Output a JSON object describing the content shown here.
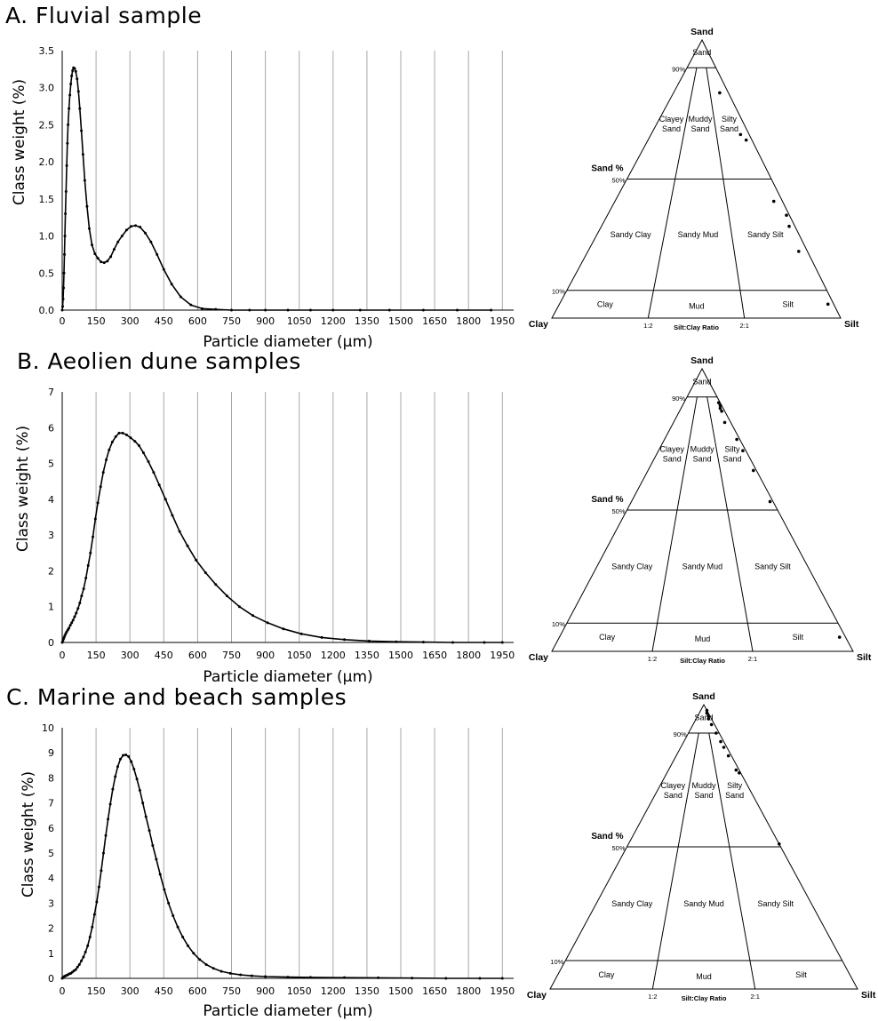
{
  "panels": [
    {
      "title": "A. Fluvial sample"
    },
    {
      "title": "B. Aeolien dune samples"
    },
    {
      "title": "C. Marine and beach samples"
    }
  ],
  "ternary_labels": {
    "top": "Sand",
    "left": "Clay",
    "right": "Silt",
    "sand_pct": "Sand %",
    "p90": "90%",
    "p50": "50%",
    "p10": "10%",
    "r12": "1:2",
    "r21": "2:1",
    "ratio": "Silt:Clay Ratio",
    "sand_field": "Sand",
    "clayey_sand": [
      "Clayey",
      "Sand"
    ],
    "muddy_sand": [
      "Muddy",
      "Sand"
    ],
    "silty_sand": [
      "Silty",
      "Sand"
    ],
    "sandy_clay": "Sandy Clay",
    "sandy_mud": "Sandy Mud",
    "sandy_silt": "Sandy Silt",
    "clay_field": "Clay",
    "mud_field": "Mud",
    "silt_field": "Silt"
  },
  "chart_data": [
    {
      "type": "line",
      "id": "A",
      "xlabel": "Particle diameter (μm)",
      "ylabel": "Class weight (%)",
      "xlim": [
        0,
        2000
      ],
      "ylim": [
        0,
        3.5
      ],
      "xticks": [
        0,
        150,
        300,
        450,
        600,
        750,
        900,
        1050,
        1200,
        1350,
        1500,
        1650,
        1800,
        1950
      ],
      "yticks": [
        "0.0",
        "0.5",
        "1.0",
        "1.5",
        "2.0",
        "2.5",
        "3.0",
        "3.5"
      ],
      "x": [
        0,
        2,
        4,
        6,
        8,
        10,
        12,
        14,
        17,
        20,
        23,
        26,
        30,
        34,
        38,
        42,
        46,
        50,
        55,
        60,
        66,
        72,
        78,
        85,
        92,
        100,
        110,
        120,
        132,
        145,
        158,
        172,
        186,
        200,
        215,
        230,
        247,
        265,
        285,
        305,
        325,
        345,
        368,
        393,
        420,
        450,
        485,
        525,
        570,
        620,
        680,
        750,
        830,
        900,
        1000,
        1100,
        1200,
        1320,
        1450,
        1600,
        1750,
        1900
      ],
      "y": [
        0,
        0.05,
        0.15,
        0.3,
        0.5,
        0.75,
        1.0,
        1.3,
        1.6,
        1.95,
        2.25,
        2.5,
        2.72,
        2.9,
        3.05,
        3.16,
        3.23,
        3.27,
        3.26,
        3.22,
        3.12,
        2.95,
        2.72,
        2.42,
        2.1,
        1.75,
        1.4,
        1.1,
        0.88,
        0.76,
        0.7,
        0.65,
        0.64,
        0.66,
        0.72,
        0.82,
        0.92,
        1.0,
        1.08,
        1.13,
        1.14,
        1.12,
        1.04,
        0.92,
        0.75,
        0.55,
        0.35,
        0.18,
        0.07,
        0.02,
        0.01,
        0,
        0,
        0,
        0,
        0,
        0,
        0,
        0,
        0,
        0,
        0
      ]
    },
    {
      "type": "line",
      "id": "B",
      "xlabel": "Particle diameter (μm)",
      "ylabel": "Class weight (%)",
      "xlim": [
        0,
        2000
      ],
      "ylim": [
        0,
        7
      ],
      "xticks": [
        0,
        150,
        300,
        450,
        600,
        750,
        900,
        1050,
        1200,
        1350,
        1500,
        1650,
        1800,
        1950
      ],
      "yticks": [
        "0",
        "1",
        "2",
        "3",
        "4",
        "5",
        "6",
        "7"
      ],
      "x": [
        0,
        3,
        6,
        9,
        12,
        16,
        20,
        25,
        30,
        36,
        42,
        48,
        55,
        62,
        70,
        78,
        86,
        95,
        105,
        115,
        125,
        136,
        147,
        158,
        170,
        182,
        195,
        208,
        222,
        237,
        252,
        268,
        285,
        303,
        322,
        340,
        360,
        382,
        405,
        430,
        458,
        488,
        520,
        555,
        593,
        635,
        680,
        730,
        785,
        845,
        910,
        980,
        1060,
        1150,
        1250,
        1360,
        1480,
        1600,
        1730,
        1870,
        1950
      ],
      "y": [
        0,
        0.05,
        0.1,
        0.15,
        0.2,
        0.25,
        0.3,
        0.35,
        0.4,
        0.48,
        0.55,
        0.62,
        0.72,
        0.82,
        0.95,
        1.1,
        1.3,
        1.5,
        1.8,
        2.15,
        2.5,
        2.95,
        3.45,
        3.9,
        4.35,
        4.75,
        5.1,
        5.38,
        5.6,
        5.75,
        5.85,
        5.85,
        5.8,
        5.72,
        5.62,
        5.5,
        5.3,
        5.05,
        4.75,
        4.4,
        4.0,
        3.55,
        3.1,
        2.7,
        2.3,
        1.95,
        1.62,
        1.3,
        1.0,
        0.75,
        0.55,
        0.38,
        0.24,
        0.14,
        0.08,
        0.04,
        0.02,
        0.01,
        0,
        0,
        0
      ]
    },
    {
      "type": "line",
      "id": "C",
      "xlabel": "Particle diameter (μm)",
      "ylabel": "Class weight (%)",
      "xlim": [
        0,
        2000
      ],
      "ylim": [
        0,
        10
      ],
      "xticks": [
        0,
        150,
        300,
        450,
        600,
        750,
        900,
        1050,
        1200,
        1350,
        1500,
        1650,
        1800,
        1950
      ],
      "yticks": [
        "0",
        "1",
        "2",
        "3",
        "4",
        "5",
        "6",
        "7",
        "8",
        "9",
        "10"
      ],
      "x": [
        0,
        5,
        10,
        15,
        20,
        26,
        32,
        38,
        45,
        52,
        60,
        68,
        76,
        85,
        94,
        103,
        113,
        123,
        133,
        143,
        153,
        163,
        173,
        183,
        193,
        203,
        213,
        224,
        235,
        246,
        258,
        270,
        282,
        294,
        306,
        318,
        331,
        344,
        357,
        371,
        386,
        401,
        417,
        434,
        452,
        471,
        491,
        512,
        534,
        557,
        582,
        609,
        638,
        670,
        705,
        745,
        790,
        840,
        900,
        1000,
        1100,
        1250,
        1400,
        1550,
        1700,
        1850,
        1950
      ],
      "y": [
        0,
        0.05,
        0.08,
        0.1,
        0.12,
        0.15,
        0.18,
        0.2,
        0.25,
        0.3,
        0.35,
        0.45,
        0.55,
        0.7,
        0.85,
        1.05,
        1.3,
        1.65,
        2.05,
        2.55,
        3.05,
        3.65,
        4.3,
        5.0,
        5.7,
        6.35,
        6.95,
        7.55,
        8.05,
        8.45,
        8.75,
        8.9,
        8.92,
        8.85,
        8.65,
        8.35,
        7.95,
        7.5,
        7.0,
        6.45,
        5.9,
        5.3,
        4.75,
        4.15,
        3.55,
        3.0,
        2.5,
        2.05,
        1.65,
        1.3,
        1.0,
        0.75,
        0.55,
        0.4,
        0.28,
        0.2,
        0.14,
        0.1,
        0.07,
        0.05,
        0.04,
        0.03,
        0.02,
        0.01,
        0,
        0,
        0
      ]
    },
    {
      "type": "scatter",
      "id": "TA",
      "subtype": "ternary",
      "points_sand_silt": [
        [
          81,
          16
        ],
        [
          66,
          31
        ],
        [
          64,
          34
        ],
        [
          42,
          55
        ],
        [
          37,
          62
        ],
        [
          33,
          65
        ],
        [
          24,
          73
        ],
        [
          5,
          93
        ]
      ]
    },
    {
      "type": "scatter",
      "id": "TB",
      "subtype": "ternary",
      "points_sand_silt": [
        [
          88,
          11.5
        ],
        [
          87,
          12.5
        ],
        [
          86,
          13
        ],
        [
          85,
          14
        ],
        [
          81,
          17
        ],
        [
          75,
          24
        ],
        [
          71,
          28
        ],
        [
          64,
          35
        ],
        [
          53,
          46
        ],
        [
          5,
          93
        ]
      ]
    },
    {
      "type": "scatter",
      "id": "TC",
      "subtype": "ternary",
      "points_sand_silt": [
        [
          98,
          2
        ],
        [
          97,
          2.5
        ],
        [
          96,
          3.5
        ],
        [
          95,
          4
        ],
        [
          93,
          6
        ],
        [
          90,
          9
        ],
        [
          87,
          12
        ],
        [
          85,
          14
        ],
        [
          82,
          17
        ],
        [
          77,
          22
        ],
        [
          76,
          23.5
        ],
        [
          51,
          49
        ]
      ]
    }
  ]
}
